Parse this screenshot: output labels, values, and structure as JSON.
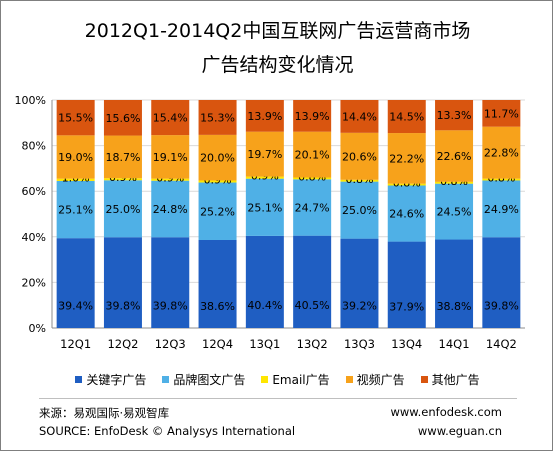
{
  "title_line1": "2012Q1-2014Q2中国互联网广告运营商市场",
  "title_line2": "广告结构变化情况",
  "chart_data": {
    "type": "bar",
    "stacked": true,
    "categories": [
      "12Q1",
      "12Q2",
      "12Q3",
      "12Q4",
      "13Q1",
      "13Q2",
      "13Q3",
      "13Q4",
      "14Q1",
      "14Q2"
    ],
    "series": [
      {
        "name": "关键字广告",
        "color": "#1f5ec2",
        "values": [
          39.4,
          39.8,
          39.8,
          38.6,
          40.4,
          40.5,
          39.2,
          37.9,
          38.8,
          39.8
        ]
      },
      {
        "name": "品牌图文广告",
        "color": "#4fb0e6",
        "values": [
          25.1,
          25.0,
          24.8,
          25.2,
          25.1,
          24.7,
          25.0,
          24.6,
          24.5,
          24.9
        ]
      },
      {
        "name": "Email广告",
        "color": "#ffe600",
        "values": [
          1.0,
          0.9,
          0.9,
          0.9,
          0.9,
          0.8,
          0.8,
          0.8,
          0.8,
          0.8
        ]
      },
      {
        "name": "视频广告",
        "color": "#f7a21b",
        "values": [
          19.0,
          18.7,
          19.1,
          20.0,
          19.7,
          20.1,
          20.6,
          22.2,
          22.6,
          22.8
        ]
      },
      {
        "name": "其他广告",
        "color": "#d9550f",
        "values": [
          15.5,
          15.6,
          15.4,
          15.3,
          13.9,
          13.9,
          14.4,
          14.5,
          13.3,
          11.7
        ]
      }
    ],
    "yticks": [
      "0%",
      "20%",
      "40%",
      "60%",
      "80%",
      "100%"
    ],
    "ylim": [
      0,
      100
    ],
    "grid": true,
    "legend_position": "bottom"
  },
  "footer": {
    "source_cn": "来源：易观国际·易观智库",
    "source_en": "SOURCE: EnfoDesk © Analysys International",
    "url1": "www.enfodesk.com",
    "url2": "www.eguan.cn"
  }
}
